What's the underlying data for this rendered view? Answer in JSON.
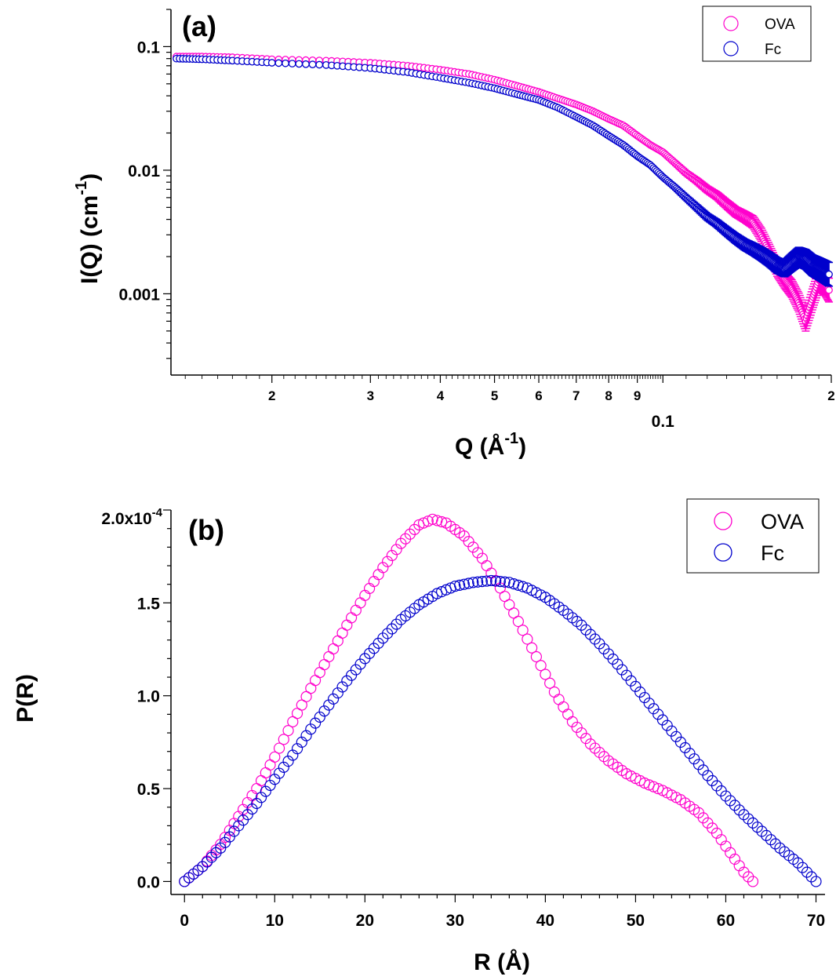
{
  "colors": {
    "ova": "#ff00cc",
    "fc": "#0000cc",
    "axis": "#000000"
  },
  "chart_data": [
    {
      "type": "scatter",
      "panel_label": "(a)",
      "xlabel": "Q (Å-1)",
      "xlabel_main": "Q (Å",
      "xlabel_sup": "-1",
      "xlabel_end": ")",
      "ylabel": "I(Q) (cm-1)",
      "ylabel_main": "I(Q) (cm",
      "ylabel_sup": "-1",
      "ylabel_end": ")",
      "xscale": "log",
      "yscale": "log",
      "xlim": [
        0.0132,
        0.2
      ],
      "ylim": [
        0.00022,
        0.2
      ],
      "x_tick_labels": [
        {
          "value": 0.02,
          "label": "2"
        },
        {
          "value": 0.03,
          "label": "3"
        },
        {
          "value": 0.04,
          "label": "4"
        },
        {
          "value": 0.05,
          "label": "5"
        },
        {
          "value": 0.06,
          "label": "6"
        },
        {
          "value": 0.07,
          "label": "7"
        },
        {
          "value": 0.08,
          "label": "8"
        },
        {
          "value": 0.09,
          "label": "9"
        },
        {
          "value": 0.1,
          "label": "0.1"
        },
        {
          "value": 0.2,
          "label": "2"
        }
      ],
      "y_tick_labels": [
        {
          "value": 0.1,
          "label": "0.1"
        },
        {
          "value": 0.01,
          "label": "0.01"
        },
        {
          "value": 0.001,
          "label": "0.001"
        }
      ],
      "legend_position": "top-right",
      "error_bars": true,
      "series": [
        {
          "name": "OVA",
          "x": [
            0.0135,
            0.015,
            0.017,
            0.02,
            0.025,
            0.03,
            0.035,
            0.04,
            0.045,
            0.05,
            0.055,
            0.06,
            0.065,
            0.07,
            0.075,
            0.08,
            0.085,
            0.09,
            0.095,
            0.1,
            0.105,
            0.11,
            0.115,
            0.12,
            0.125,
            0.13,
            0.135,
            0.14,
            0.145,
            0.15,
            0.155,
            0.16,
            0.165,
            0.17,
            0.175,
            0.18,
            0.185,
            0.19,
            0.195,
            0.2
          ],
          "y": [
            0.083,
            0.083,
            0.082,
            0.079,
            0.077,
            0.074,
            0.07,
            0.065,
            0.06,
            0.054,
            0.048,
            0.043,
            0.038,
            0.034,
            0.03,
            0.026,
            0.023,
            0.019,
            0.016,
            0.014,
            0.0115,
            0.0095,
            0.0082,
            0.007,
            0.0062,
            0.0053,
            0.0046,
            0.0042,
            0.0038,
            0.003,
            0.0022,
            0.0016,
            0.0013,
            0.0011,
            0.00085,
            0.0006,
            0.0009,
            0.0013,
            0.0012,
            0.001
          ]
        },
        {
          "name": "Fc",
          "x": [
            0.0135,
            0.015,
            0.017,
            0.02,
            0.025,
            0.03,
            0.035,
            0.04,
            0.045,
            0.05,
            0.055,
            0.06,
            0.065,
            0.07,
            0.075,
            0.08,
            0.085,
            0.09,
            0.095,
            0.1,
            0.105,
            0.11,
            0.115,
            0.12,
            0.125,
            0.13,
            0.135,
            0.14,
            0.145,
            0.15,
            0.155,
            0.16,
            0.165,
            0.17,
            0.175,
            0.18,
            0.185,
            0.19,
            0.195,
            0.2
          ],
          "y": [
            0.08,
            0.079,
            0.077,
            0.074,
            0.071,
            0.067,
            0.062,
            0.056,
            0.051,
            0.046,
            0.041,
            0.037,
            0.032,
            0.027,
            0.023,
            0.019,
            0.016,
            0.013,
            0.011,
            0.0088,
            0.0073,
            0.006,
            0.005,
            0.0042,
            0.0037,
            0.0032,
            0.0028,
            0.0025,
            0.0023,
            0.0021,
            0.0019,
            0.0017,
            0.0016,
            0.0018,
            0.002,
            0.0019,
            0.0017,
            0.0016,
            0.0015,
            0.0014
          ]
        }
      ]
    },
    {
      "type": "scatter",
      "panel_label": "(b)",
      "xlabel": "R (Å)",
      "ylabel": "P(R)",
      "xlim": [
        -1.5,
        71
      ],
      "ylim": [
        -0.07,
        2.0
      ],
      "y_multiplier_label": "2.0x10",
      "y_multiplier_exp": "-4",
      "x_tick_labels": [
        {
          "value": 0,
          "label": "0"
        },
        {
          "value": 10,
          "label": "10"
        },
        {
          "value": 20,
          "label": "20"
        },
        {
          "value": 30,
          "label": "30"
        },
        {
          "value": 40,
          "label": "40"
        },
        {
          "value": 50,
          "label": "50"
        },
        {
          "value": 60,
          "label": "60"
        },
        {
          "value": 70,
          "label": "70"
        }
      ],
      "y_tick_labels": [
        {
          "value": 0.0,
          "label": "0.0"
        },
        {
          "value": 0.5,
          "label": "0.5"
        },
        {
          "value": 1.0,
          "label": "1.0"
        },
        {
          "value": 1.5,
          "label": "1.5"
        }
      ],
      "legend_position": "top-right",
      "series": [
        {
          "name": "OVA",
          "x": [
            0,
            2,
            4,
            6,
            8,
            10,
            12,
            14,
            16,
            18,
            20,
            22,
            24,
            26,
            27.5,
            29,
            31,
            33,
            35,
            37,
            39,
            41,
            43,
            45,
            47,
            49,
            51,
            53,
            55,
            57,
            59,
            61,
            62,
            63
          ],
          "y": [
            0.0,
            0.08,
            0.2,
            0.35,
            0.5,
            0.67,
            0.86,
            1.04,
            1.21,
            1.38,
            1.54,
            1.69,
            1.82,
            1.92,
            1.95,
            1.93,
            1.86,
            1.74,
            1.58,
            1.4,
            1.21,
            1.02,
            0.86,
            0.74,
            0.65,
            0.58,
            0.53,
            0.49,
            0.44,
            0.37,
            0.26,
            0.12,
            0.05,
            0.0
          ]
        },
        {
          "name": "Fc",
          "x": [
            0,
            2,
            4,
            6,
            8,
            10,
            12,
            14,
            16,
            18,
            20,
            22,
            24,
            26,
            28,
            30,
            32,
            34,
            36,
            38,
            40,
            42,
            44,
            46,
            48,
            50,
            52,
            54,
            56,
            58,
            60,
            62,
            64,
            66,
            68,
            70
          ],
          "y": [
            0.0,
            0.08,
            0.18,
            0.3,
            0.42,
            0.55,
            0.68,
            0.82,
            0.95,
            1.08,
            1.2,
            1.31,
            1.41,
            1.49,
            1.55,
            1.59,
            1.61,
            1.62,
            1.61,
            1.58,
            1.53,
            1.46,
            1.38,
            1.28,
            1.17,
            1.05,
            0.93,
            0.81,
            0.69,
            0.57,
            0.46,
            0.36,
            0.27,
            0.18,
            0.1,
            0.0
          ]
        }
      ]
    }
  ]
}
